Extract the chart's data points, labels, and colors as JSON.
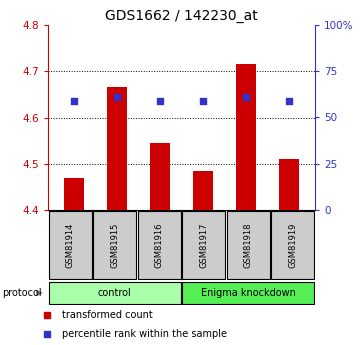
{
  "title": "GDS1662 / 142230_at",
  "samples": [
    "GSM81914",
    "GSM81915",
    "GSM81916",
    "GSM81917",
    "GSM81918",
    "GSM81919"
  ],
  "bar_values": [
    4.47,
    4.665,
    4.545,
    4.485,
    4.715,
    4.51
  ],
  "bar_bottom": 4.4,
  "blue_dot_values": [
    4.635,
    4.645,
    4.635,
    4.635,
    4.645,
    4.635
  ],
  "bar_color": "#cc0000",
  "dot_color": "#3333cc",
  "ylim_left": [
    4.4,
    4.8
  ],
  "ylim_right": [
    0,
    100
  ],
  "yticks_left": [
    4.4,
    4.5,
    4.6,
    4.7,
    4.8
  ],
  "yticks_right": [
    0,
    25,
    50,
    75,
    100
  ],
  "ytick_labels_right": [
    "0",
    "25",
    "50",
    "75",
    "100%"
  ],
  "grid_values": [
    4.5,
    4.6,
    4.7
  ],
  "protocol_groups": [
    {
      "label": "control",
      "start": 0,
      "end": 3,
      "color": "#aaffaa"
    },
    {
      "label": "Enigma knockdown",
      "start": 3,
      "end": 6,
      "color": "#55ee55"
    }
  ],
  "protocol_label": "protocol",
  "legend_items": [
    {
      "label": "transformed count",
      "color": "#cc0000"
    },
    {
      "label": "percentile rank within the sample",
      "color": "#3333cc"
    }
  ],
  "bar_width": 0.45,
  "sample_box_color": "#cccccc",
  "left_tick_color": "#cc0000",
  "right_tick_color": "#3333cc",
  "title_fontsize": 10
}
